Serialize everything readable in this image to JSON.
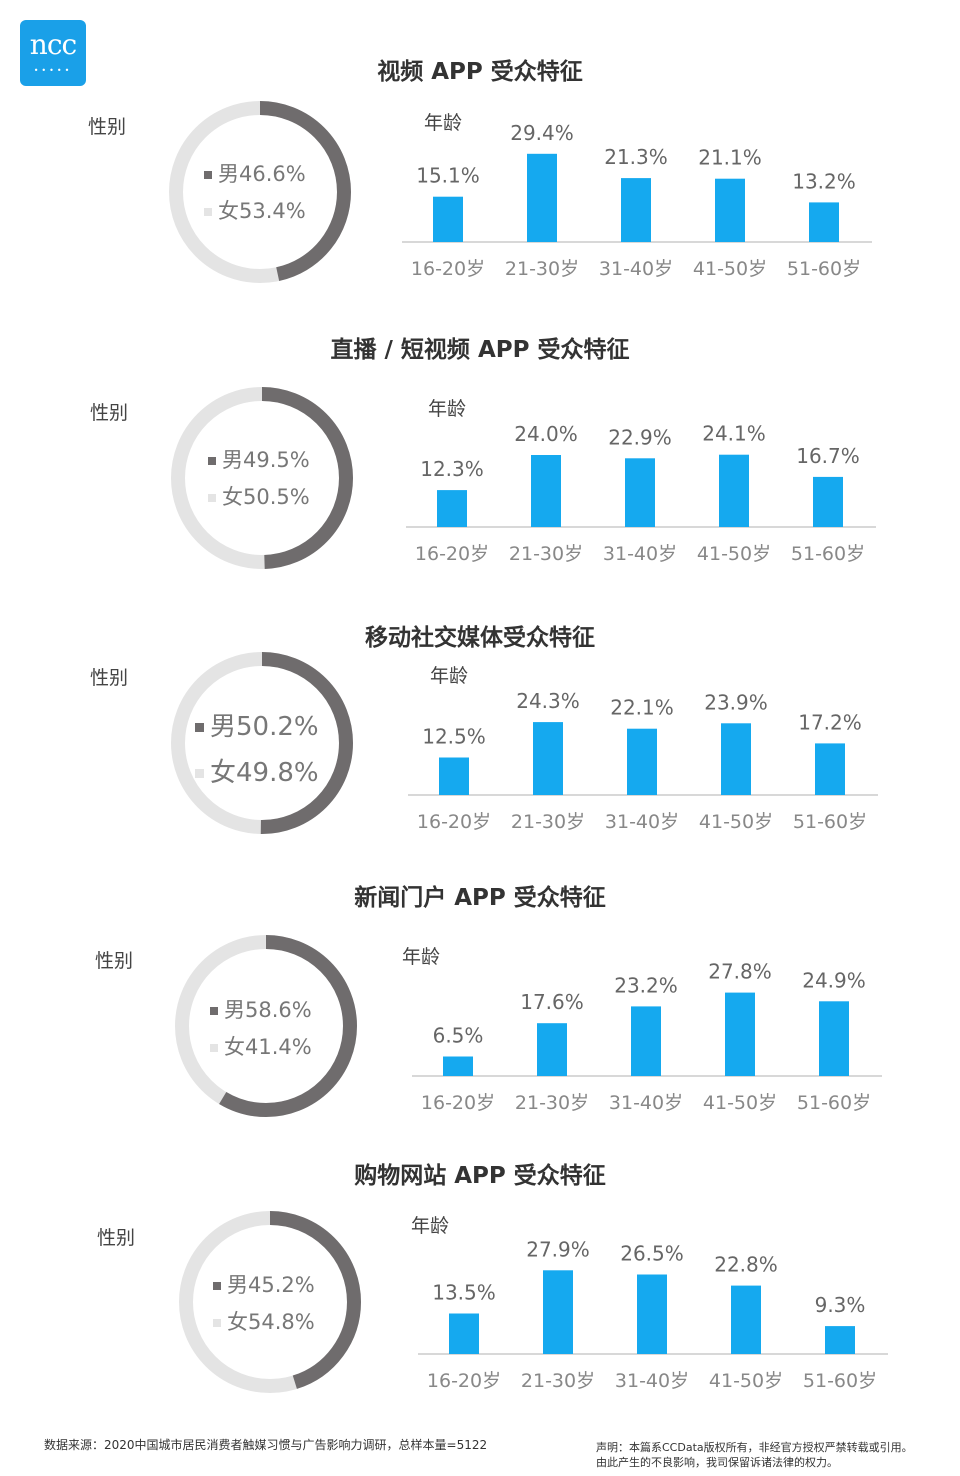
{
  "logo": {
    "text": "ncc",
    "dots": "•••••"
  },
  "colors": {
    "male": "#6f6c6d",
    "female": "#e4e4e4",
    "bar": "#15a9ef",
    "axis": "#cccccc"
  },
  "chart_data": [
    {
      "type": "bar",
      "title": "视频 APP 受众特征",
      "gender_label": "性别",
      "age_label": "年龄",
      "gender": {
        "male": 46.6,
        "female": 53.4,
        "male_label": "男46.6%",
        "female_label": "女53.4%"
      },
      "categories": [
        "16-20岁",
        "21-30岁",
        "31-40岁",
        "41-50岁",
        "51-60岁"
      ],
      "values": [
        15.1,
        29.4,
        21.3,
        21.1,
        13.2
      ],
      "value_labels": [
        "15.1%",
        "29.4%",
        "21.3%",
        "21.1%",
        "13.2%"
      ]
    },
    {
      "type": "bar",
      "title": "直播 / 短视频 APP 受众特征",
      "gender_label": "性别",
      "age_label": "年龄",
      "gender": {
        "male": 49.5,
        "female": 50.5,
        "male_label": "男49.5%",
        "female_label": "女50.5%"
      },
      "categories": [
        "16-20岁",
        "21-30岁",
        "31-40岁",
        "41-50岁",
        "51-60岁"
      ],
      "values": [
        12.3,
        24.0,
        22.9,
        24.1,
        16.7
      ],
      "value_labels": [
        "12.3%",
        "24.0%",
        "22.9%",
        "24.1%",
        "16.7%"
      ]
    },
    {
      "type": "bar",
      "title": "移动社交媒体受众特征",
      "gender_label": "性别",
      "age_label": "年龄",
      "gender": {
        "male": 50.2,
        "female": 49.8,
        "male_label": "男50.2%",
        "female_label": "女49.8%"
      },
      "categories": [
        "16-20岁",
        "21-30岁",
        "31-40岁",
        "41-50岁",
        "51-60岁"
      ],
      "values": [
        12.5,
        24.3,
        22.1,
        23.9,
        17.2
      ],
      "value_labels": [
        "12.5%",
        "24.3%",
        "22.1%",
        "23.9%",
        "17.2%"
      ]
    },
    {
      "type": "bar",
      "title": "新闻门户 APP 受众特征",
      "gender_label": "性别",
      "age_label": "年龄",
      "gender": {
        "male": 58.6,
        "female": 41.4,
        "male_label": "男58.6%",
        "female_label": "女41.4%"
      },
      "categories": [
        "16-20岁",
        "21-30岁",
        "31-40岁",
        "41-50岁",
        "51-60岁"
      ],
      "values": [
        6.5,
        17.6,
        23.2,
        27.8,
        24.9
      ],
      "value_labels": [
        "6.5%",
        "17.6%",
        "23.2%",
        "27.8%",
        "24.9%"
      ]
    },
    {
      "type": "bar",
      "title": "购物网站 APP 受众特征",
      "gender_label": "性别",
      "age_label": "年龄",
      "gender": {
        "male": 45.2,
        "female": 54.8,
        "male_label": "男45.2%",
        "female_label": "女54.8%"
      },
      "categories": [
        "16-20岁",
        "21-30岁",
        "31-40岁",
        "41-50岁",
        "51-60岁"
      ],
      "values": [
        13.5,
        27.9,
        26.5,
        22.8,
        9.3
      ],
      "value_labels": [
        "13.5%",
        "27.9%",
        "26.5%",
        "22.8%",
        "9.3%"
      ]
    }
  ],
  "footer": {
    "source": "数据来源：2020中国城市居民消费者触媒习惯与广告影响力调研，总样本量=5122",
    "disclaimer_1": "声明：本篇系CCData版权所有，非经官方授权严禁转载或引用。",
    "disclaimer_2": "由此产生的不良影响，我司保留诉诸法律的权力。"
  }
}
